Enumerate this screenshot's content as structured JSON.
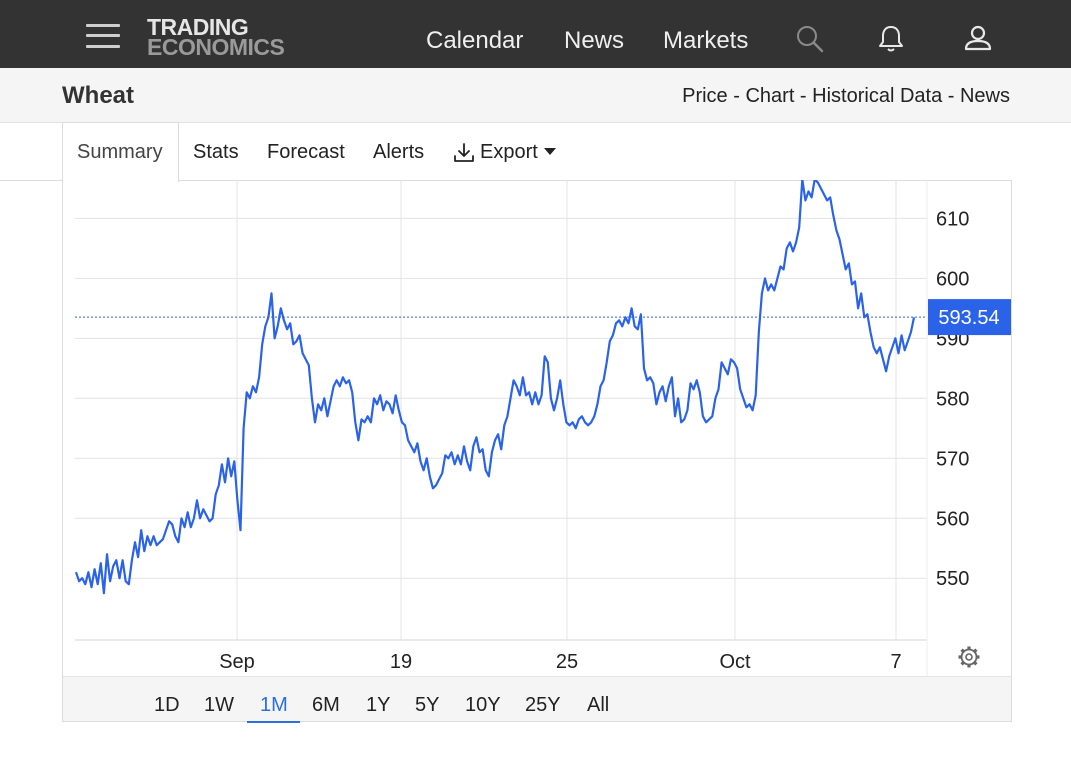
{
  "nav": {
    "logo_line1": "TRADING",
    "logo_line2": "ECONOMICS",
    "links": [
      "Calendar",
      "News",
      "Markets"
    ],
    "icons": [
      "menu-icon",
      "search-icon",
      "bell-icon",
      "user-icon"
    ]
  },
  "header": {
    "title": "Wheat",
    "breadcrumb": [
      "Price",
      "Chart",
      "Historical Data",
      "News"
    ],
    "separator": " - "
  },
  "tabs": {
    "items": [
      "Summary",
      "Stats",
      "Forecast",
      "Alerts",
      "Export"
    ],
    "active": "Summary"
  },
  "ranges": {
    "items": [
      "1D",
      "1W",
      "1M",
      "6M",
      "1Y",
      "5Y",
      "10Y",
      "25Y",
      "All"
    ],
    "active": "1M"
  },
  "colors": {
    "line": "#2b63e8",
    "accent": "#2a6fdb",
    "last_badge": "#2b63e8",
    "nav_bg": "#333333"
  },
  "chart_data": {
    "type": "line",
    "title": "",
    "xlabel": "",
    "ylabel": "",
    "ylim": [
      539.7,
      616.4
    ],
    "yticks": [
      550,
      560,
      570,
      580,
      590,
      600,
      610
    ],
    "ytick_labels": [
      "550",
      "560",
      "570",
      "580",
      "590",
      "600",
      "610"
    ],
    "xticks": [
      "Sep",
      "19",
      "25",
      "Oct",
      "7"
    ],
    "last_value": 593.54,
    "last_label": "593.54",
    "grid": true,
    "series": [
      {
        "values": [
          551,
          549.5,
          550,
          549,
          551,
          548.5,
          551.5,
          549,
          552.5,
          547.5,
          554,
          549.5,
          552,
          553,
          550,
          553,
          549.5,
          549,
          553,
          556,
          553.5,
          558,
          554.5,
          557,
          555.5,
          557,
          555.5,
          556,
          556.5,
          558,
          559.5,
          559,
          557,
          556,
          560,
          558.5,
          561,
          558.5,
          560,
          563,
          560,
          561.5,
          560.5,
          559.5,
          560,
          564,
          565.5,
          569,
          566,
          570,
          567,
          569.5,
          563,
          558,
          575,
          581,
          580,
          582,
          581,
          583.5,
          589,
          592,
          593.5,
          597.5,
          590,
          592,
          595,
          593,
          591.5,
          592.5,
          589,
          589.5,
          590.5,
          587.5,
          586.5,
          585.5,
          580,
          576,
          579,
          578,
          580,
          577,
          579.5,
          582,
          583,
          582,
          583.5,
          582.5,
          583,
          581,
          576,
          573,
          576.5,
          576,
          577,
          576,
          580,
          579,
          580.5,
          578,
          579.5,
          579,
          577.5,
          580.5,
          578,
          576,
          575.5,
          573,
          572,
          571,
          572.5,
          569.5,
          568,
          570,
          567,
          565,
          565.5,
          566.5,
          567.5,
          570.5,
          570,
          571,
          569,
          570.5,
          569,
          572,
          569.5,
          568,
          572,
          573.5,
          571,
          571.5,
          568,
          567,
          571,
          573,
          574,
          571.5,
          575.5,
          577,
          580,
          583,
          582,
          580.5,
          583.5,
          580.5,
          581,
          579,
          581,
          579,
          580.5,
          587,
          586,
          580,
          578,
          580,
          583,
          579,
          576,
          575.5,
          576,
          575,
          576.5,
          577,
          576,
          575.5,
          576,
          577,
          579,
          582,
          583,
          586,
          589.5,
          590.5,
          592.5,
          593,
          592,
          593.5,
          592.5,
          595,
          592,
          591.5,
          594,
          585,
          583,
          583.5,
          582.5,
          579,
          581,
          582,
          579.5,
          582,
          583.5,
          577,
          580,
          576,
          576.5,
          578,
          582.5,
          581.5,
          583,
          581,
          577,
          576,
          576.5,
          577,
          580,
          581.5,
          586,
          585,
          584,
          586.5,
          586,
          585,
          581.5,
          580,
          578.5,
          579,
          578,
          580.5,
          591,
          597.5,
          600,
          598,
          599,
          598,
          600,
          602,
          601.5,
          605,
          606,
          604.5,
          606,
          608.5,
          616.5,
          613,
          614.5,
          613.5,
          616.5,
          616,
          615,
          614,
          613,
          613.5,
          610.5,
          608,
          606.5,
          604,
          601.5,
          602.5,
          599,
          599.5,
          595,
          597.5,
          593.5,
          594,
          591,
          588.5,
          587.5,
          588.5,
          586.5,
          584.5,
          587,
          588.5,
          590,
          587.5,
          590.5,
          588,
          589.5,
          591,
          593.5
        ]
      }
    ]
  }
}
